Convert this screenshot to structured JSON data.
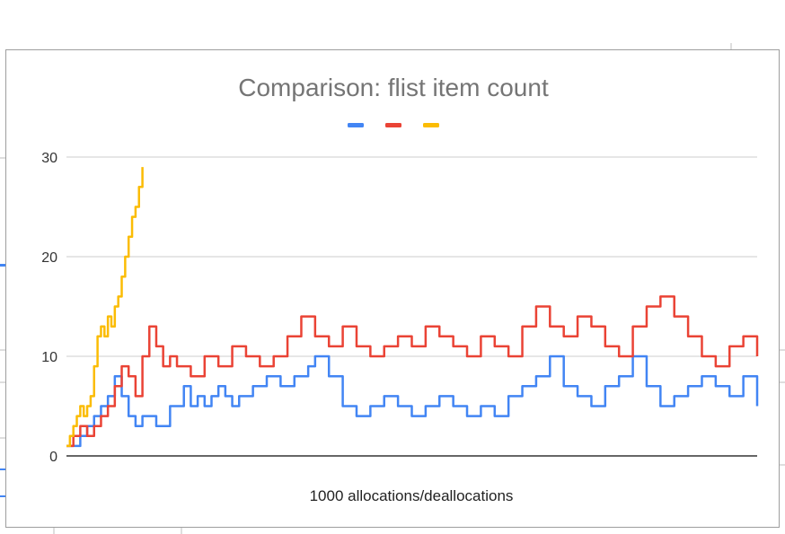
{
  "chart_data": {
    "type": "line",
    "title": "Comparison: flist item count",
    "xlabel": "1000 allocations/deallocations",
    "ylabel": "",
    "ylim": [
      0,
      30
    ],
    "yticks": [
      0,
      10,
      20,
      30
    ],
    "grid": true,
    "legend": "top-center",
    "series": [
      {
        "color": "#4285f4",
        "x": [
          0,
          2,
          3,
          4,
          5,
          6,
          7,
          8,
          9,
          10,
          11,
          13,
          15,
          17,
          18,
          19,
          20,
          21,
          22,
          23,
          24,
          25,
          27,
          29,
          31,
          33,
          35,
          36,
          38,
          40,
          42,
          44,
          46,
          48,
          50,
          52,
          54,
          56,
          58,
          60,
          62,
          64,
          66,
          68,
          70,
          72,
          74,
          76,
          78,
          80,
          82,
          84,
          86,
          88,
          90,
          92,
          94,
          96,
          98,
          100
        ],
        "values": [
          1,
          2,
          3,
          4,
          5,
          6,
          8,
          6,
          4,
          3,
          4,
          3,
          5,
          7,
          5,
          6,
          5,
          6,
          7,
          6,
          5,
          6,
          7,
          8,
          7,
          8,
          9,
          10,
          8,
          5,
          4,
          5,
          6,
          5,
          4,
          5,
          6,
          5,
          4,
          5,
          4,
          6,
          7,
          8,
          10,
          7,
          6,
          5,
          7,
          8,
          10,
          7,
          5,
          6,
          7,
          8,
          7,
          6,
          8,
          5
        ]
      },
      {
        "color": "#ea4335",
        "x": [
          0,
          1,
          2,
          3,
          4,
          5,
          6,
          7,
          8,
          9,
          10,
          11,
          12,
          13,
          14,
          15,
          16,
          18,
          20,
          22,
          24,
          26,
          28,
          30,
          32,
          34,
          36,
          38,
          40,
          42,
          44,
          46,
          48,
          50,
          52,
          54,
          56,
          58,
          60,
          62,
          64,
          66,
          68,
          70,
          72,
          74,
          76,
          78,
          80,
          82,
          84,
          86,
          88,
          90,
          92,
          94,
          96,
          98,
          100
        ],
        "values": [
          1,
          2,
          3,
          2,
          3,
          4,
          5,
          7,
          9,
          8,
          6,
          10,
          13,
          11,
          9,
          10,
          9,
          8,
          10,
          9,
          11,
          10,
          9,
          10,
          12,
          14,
          12,
          11,
          13,
          11,
          10,
          11,
          12,
          11,
          13,
          12,
          11,
          10,
          12,
          11,
          10,
          13,
          15,
          13,
          12,
          14,
          13,
          11,
          10,
          13,
          15,
          16,
          14,
          12,
          10,
          9,
          11,
          12,
          10
        ]
      },
      {
        "color": "#fbbc04",
        "x": [
          0,
          0.5,
          1,
          1.5,
          2,
          2.5,
          3,
          3.5,
          4,
          4.5,
          5,
          5.5,
          6,
          6.5,
          7,
          7.5,
          8,
          8.5,
          9,
          9.5,
          10,
          10.5,
          11
        ],
        "values": [
          1,
          2,
          3,
          4,
          5,
          4,
          5,
          6,
          9,
          12,
          13,
          12,
          14,
          13,
          15,
          16,
          18,
          20,
          22,
          24,
          25,
          27,
          29
        ]
      }
    ]
  }
}
